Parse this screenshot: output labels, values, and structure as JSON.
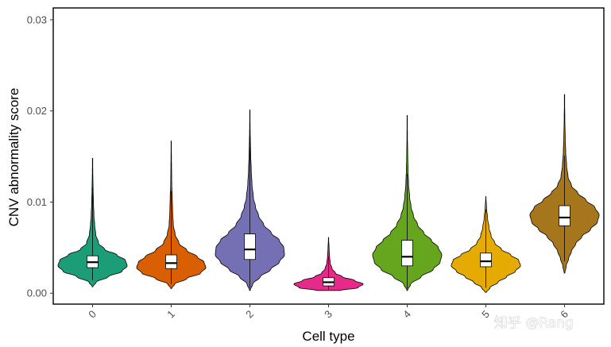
{
  "chart_data": {
    "type": "violin",
    "title": "",
    "xlabel": "Cell type",
    "ylabel": "CNV abnormality score",
    "ylim": [
      -0.0012,
      0.0313
    ],
    "yticks": [
      0.0,
      0.01,
      0.02,
      0.03
    ],
    "ytick_labels": [
      "0.00",
      "0.01",
      "0.02",
      "0.03"
    ],
    "grid": false,
    "categories": [
      "0",
      "1",
      "2",
      "3",
      "4",
      "5",
      "6"
    ],
    "series": [
      {
        "name": "0",
        "color": "#1B9E77",
        "min": 0.0007,
        "max": 0.0148,
        "q1": 0.0028,
        "median": 0.0034,
        "q3": 0.0041,
        "whisker_low": 0.0014,
        "whisker_high": 0.0117,
        "density_y": [
          0.0007,
          0.0012,
          0.0018,
          0.0024,
          0.003,
          0.0036,
          0.0042,
          0.0048,
          0.0055,
          0.0065,
          0.0075,
          0.0085,
          0.01,
          0.0115,
          0.013,
          0.0148
        ],
        "density_w": [
          0.01,
          0.1,
          0.45,
          0.85,
          1.0,
          0.95,
          0.7,
          0.35,
          0.17,
          0.09,
          0.06,
          0.04,
          0.025,
          0.015,
          0.008,
          0.0
        ]
      },
      {
        "name": "1",
        "color": "#D95F02",
        "min": 0.0005,
        "max": 0.0167,
        "q1": 0.0027,
        "median": 0.0033,
        "q3": 0.0042,
        "whisker_low": 0.001,
        "whisker_high": 0.0112,
        "density_y": [
          0.0005,
          0.001,
          0.0016,
          0.0022,
          0.0028,
          0.0034,
          0.004,
          0.0047,
          0.0055,
          0.0065,
          0.0075,
          0.009,
          0.0105,
          0.012,
          0.0145,
          0.0167
        ],
        "density_w": [
          0.01,
          0.1,
          0.45,
          0.85,
          1.0,
          0.95,
          0.75,
          0.45,
          0.22,
          0.11,
          0.06,
          0.04,
          0.03,
          0.015,
          0.008,
          0.0
        ]
      },
      {
        "name": "2",
        "color": "#7570B3",
        "min": 0.0003,
        "max": 0.0201,
        "q1": 0.0037,
        "median": 0.0048,
        "q3": 0.0065,
        "whisker_low": 0.0006,
        "whisker_high": 0.0172,
        "density_y": [
          0.0003,
          0.001,
          0.0018,
          0.0026,
          0.0034,
          0.0042,
          0.005,
          0.0058,
          0.0066,
          0.0075,
          0.0085,
          0.0095,
          0.0105,
          0.012,
          0.0135,
          0.015,
          0.0165,
          0.018,
          0.0201
        ],
        "density_w": [
          0.01,
          0.08,
          0.3,
          0.6,
          0.85,
          1.0,
          0.98,
          0.85,
          0.62,
          0.4,
          0.25,
          0.16,
          0.1,
          0.06,
          0.04,
          0.025,
          0.015,
          0.008,
          0.0
        ]
      },
      {
        "name": "3",
        "color": "#E7298A",
        "min": 0.0003,
        "max": 0.0061,
        "q1": 0.0008,
        "median": 0.0012,
        "q3": 0.0017,
        "whisker_low": 0.0004,
        "whisker_high": 0.004,
        "density_y": [
          0.0003,
          0.0006,
          0.001,
          0.0014,
          0.0018,
          0.0022,
          0.0027,
          0.0033,
          0.004,
          0.005,
          0.0061
        ],
        "density_w": [
          0.35,
          0.85,
          1.0,
          0.75,
          0.4,
          0.2,
          0.1,
          0.05,
          0.03,
          0.015,
          0.0
        ]
      },
      {
        "name": "4",
        "color": "#66A61E",
        "min": 0.0003,
        "max": 0.0195,
        "q1": 0.003,
        "median": 0.004,
        "q3": 0.0058,
        "whisker_low": 0.0005,
        "whisker_high": 0.0131,
        "density_y": [
          0.0003,
          0.001,
          0.0018,
          0.0026,
          0.0034,
          0.0042,
          0.005,
          0.0058,
          0.0066,
          0.0075,
          0.0085,
          0.0095,
          0.0105,
          0.012,
          0.0135,
          0.015,
          0.0175,
          0.0195
        ],
        "density_w": [
          0.01,
          0.1,
          0.4,
          0.75,
          0.95,
          1.0,
          0.9,
          0.7,
          0.48,
          0.3,
          0.18,
          0.11,
          0.07,
          0.04,
          0.025,
          0.015,
          0.006,
          0.0
        ]
      },
      {
        "name": "5",
        "color": "#E6AB02",
        "min": 0.0001,
        "max": 0.0106,
        "q1": 0.0029,
        "median": 0.0035,
        "q3": 0.0044,
        "whisker_low": 0.0006,
        "whisker_high": 0.0092,
        "density_y": [
          0.0001,
          0.0006,
          0.0012,
          0.0018,
          0.0024,
          0.003,
          0.0036,
          0.0042,
          0.0048,
          0.0055,
          0.0063,
          0.0072,
          0.0082,
          0.0094,
          0.0106
        ],
        "density_w": [
          0.02,
          0.12,
          0.35,
          0.6,
          0.85,
          1.0,
          0.95,
          0.72,
          0.45,
          0.26,
          0.15,
          0.09,
          0.05,
          0.02,
          0.0
        ]
      },
      {
        "name": "6",
        "color": "#A6761D",
        "min": 0.0022,
        "max": 0.0218,
        "q1": 0.0074,
        "median": 0.0083,
        "q3": 0.0096,
        "whisker_low": 0.0035,
        "whisker_high": 0.0151,
        "density_y": [
          0.0022,
          0.003,
          0.0038,
          0.0046,
          0.0054,
          0.0062,
          0.007,
          0.0078,
          0.0086,
          0.0094,
          0.0102,
          0.011,
          0.0118,
          0.0128,
          0.014,
          0.0155,
          0.017,
          0.019,
          0.0218
        ],
        "density_w": [
          0.01,
          0.05,
          0.12,
          0.2,
          0.32,
          0.5,
          0.75,
          0.95,
          1.0,
          0.88,
          0.62,
          0.38,
          0.2,
          0.1,
          0.06,
          0.035,
          0.02,
          0.01,
          0.0
        ]
      }
    ]
  },
  "watermark": {
    "text": "知乎 @Rang"
  }
}
